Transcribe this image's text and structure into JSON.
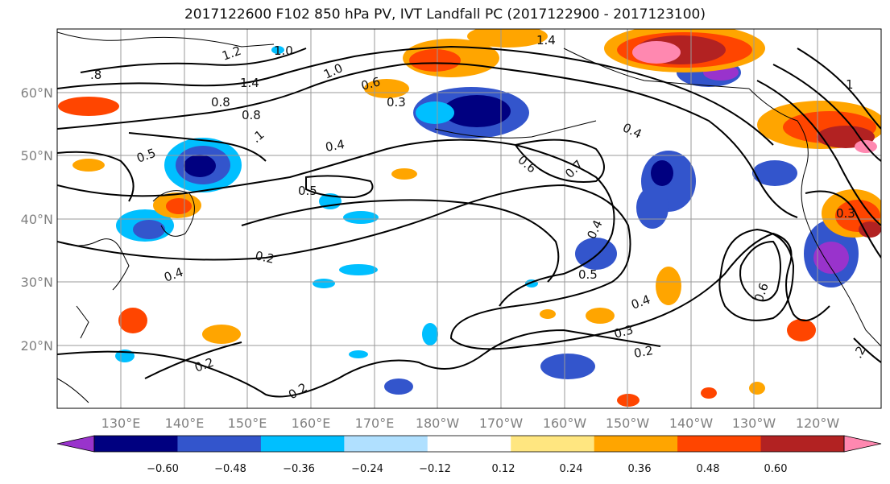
{
  "title": "2017122600 F102 850 hPa PV, IVT Landfall PC (2017122900 - 2017123100)",
  "map": {
    "lat_ticks": [
      "60°N",
      "50°N",
      "40°N",
      "30°N",
      "20°N"
    ],
    "lon_ticks": [
      "130°E",
      "140°E",
      "150°E",
      "160°E",
      "170°E",
      "180°W",
      "170°W",
      "160°W",
      "150°W",
      "140°W",
      "130°W",
      "120°W"
    ],
    "contour_labels": [
      "1.2",
      "1.0",
      ".8",
      "1.4",
      "1.0",
      "1.4",
      "0.6",
      "0.3",
      "0.8",
      "0.8",
      ".1",
      "0.5",
      "0.4",
      "0.4",
      "0.6",
      "0.7",
      "0.5",
      "0.4",
      "0.5",
      "0.2",
      "0.4",
      "0.4",
      "0.3",
      "0.2",
      "0.2",
      "0.2",
      "0.6",
      "0.3",
      "1",
      ".2"
    ]
  },
  "colorbar": {
    "colors": [
      "#9933cc",
      "#000080",
      "#3355cc",
      "#00bfff",
      "#b0e0ff",
      "#ffffff",
      "#ffe680",
      "#ffa500",
      "#ff4500",
      "#b22222",
      "#ff88b0"
    ],
    "labels": [
      "−0.60",
      "−0.48",
      "−0.36",
      "−0.24",
      "−0.12",
      "0.12",
      "0.24",
      "0.36",
      "0.48",
      "0.60"
    ]
  }
}
